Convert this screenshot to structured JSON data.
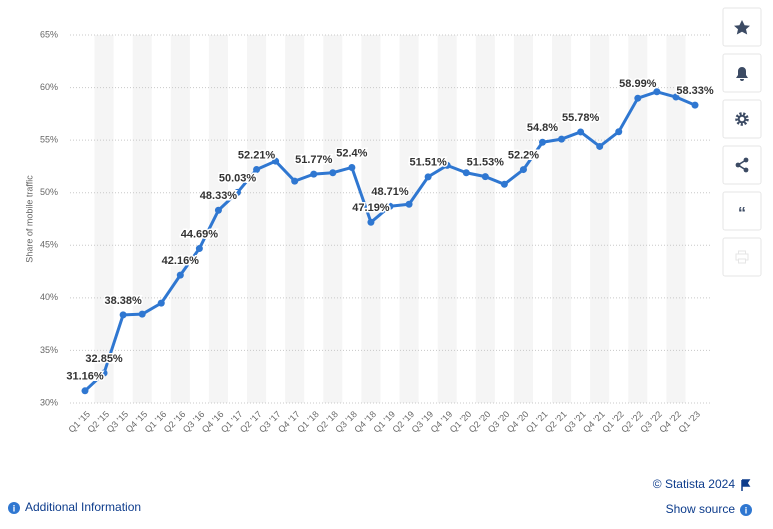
{
  "chart_data": {
    "type": "line",
    "ylabel": "Share of mobile traffic",
    "categories": [
      "Q1 '15",
      "Q2 '15",
      "Q3 '15",
      "Q4 '15",
      "Q1 '16",
      "Q2 '16",
      "Q3 '16",
      "Q4 '16",
      "Q1 '17",
      "Q2 '17",
      "Q3 '17",
      "Q4 '17",
      "Q1 '18",
      "Q2 '18",
      "Q3 '18",
      "Q4 '18",
      "Q1 '19",
      "Q2 '19",
      "Q3 '19",
      "Q4 '19",
      "Q1 '20",
      "Q2 '20",
      "Q3 '20",
      "Q4 '20",
      "Q1 '21",
      "Q2 '21",
      "Q3 '21",
      "Q4 '21",
      "Q1 '22",
      "Q2 '22",
      "Q3 '22",
      "Q4 '22",
      "Q1 '23"
    ],
    "series": [
      {
        "name": "Share of mobile traffic",
        "color": "#2f77d1",
        "values": [
          31.16,
          32.85,
          38.38,
          38.45,
          39.5,
          42.16,
          44.69,
          48.33,
          50.03,
          52.21,
          53.0,
          51.1,
          51.77,
          51.9,
          52.4,
          47.19,
          48.71,
          48.9,
          51.51,
          52.6,
          51.9,
          51.53,
          50.8,
          52.2,
          54.8,
          55.1,
          55.78,
          54.4,
          55.8,
          58.99,
          59.6,
          59.1,
          58.33
        ],
        "value_labels": [
          "31.16%",
          "32.85%",
          "38.38%",
          null,
          null,
          "42.16%",
          "44.69%",
          "48.33%",
          "50.03%",
          "52.21%",
          null,
          null,
          "51.77%",
          null,
          "52.4%",
          "47.19%",
          "48.71%",
          null,
          "51.51%",
          null,
          null,
          "51.53%",
          null,
          "52.2%",
          "54.8%",
          null,
          "55.78%",
          null,
          null,
          "58.99%",
          null,
          null,
          "58.33%"
        ]
      }
    ],
    "ylim": [
      30,
      65
    ],
    "yticks": [
      {
        "value": 30,
        "label": "30%"
      },
      {
        "value": 35,
        "label": "35%"
      },
      {
        "value": 40,
        "label": "40%"
      },
      {
        "value": 45,
        "label": "45%"
      },
      {
        "value": 50,
        "label": "50%"
      },
      {
        "value": 55,
        "label": "55%"
      },
      {
        "value": 60,
        "label": "60%"
      },
      {
        "value": 65,
        "label": "65%"
      }
    ],
    "grid": true
  },
  "footer": {
    "credit": "© Statista 2024",
    "additional": "Additional Information",
    "source": "Show source"
  }
}
